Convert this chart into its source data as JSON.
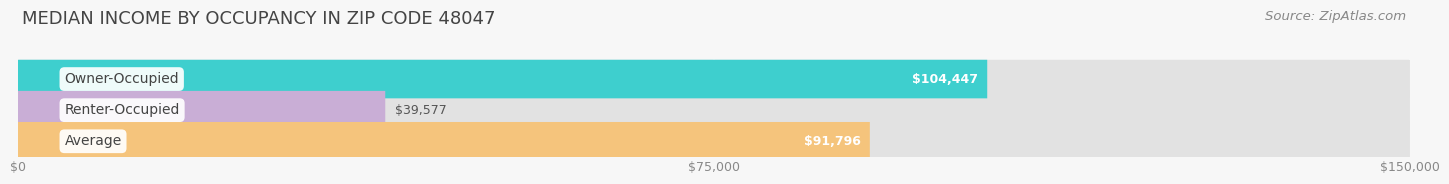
{
  "title": "MEDIAN INCOME BY OCCUPANCY IN ZIP CODE 48047",
  "source": "Source: ZipAtlas.com",
  "categories": [
    "Owner-Occupied",
    "Renter-Occupied",
    "Average"
  ],
  "values": [
    104447,
    39577,
    91796
  ],
  "labels": [
    "$104,447",
    "$39,577",
    "$91,796"
  ],
  "bar_colors": [
    "#3ecfce",
    "#c9aed6",
    "#f5c47c"
  ],
  "bar_bg_color": "#e2e2e2",
  "xlim": [
    0,
    150000
  ],
  "xticks": [
    0,
    75000,
    150000
  ],
  "xtick_labels": [
    "$0",
    "$75,000",
    "$150,000"
  ],
  "title_fontsize": 13,
  "source_fontsize": 9.5,
  "label_fontsize": 9,
  "cat_fontsize": 10,
  "background_color": "#f7f7f7",
  "label_inside_threshold": 0.55
}
